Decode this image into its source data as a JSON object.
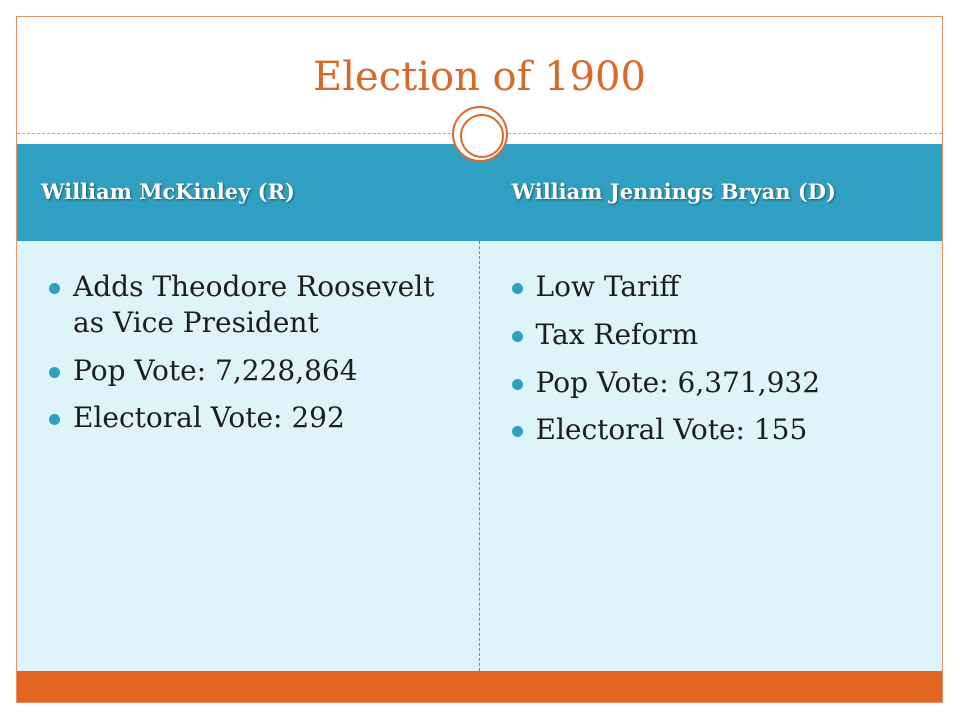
{
  "slide": {
    "title": "Election of 1900"
  },
  "table": {
    "headers": [
      "William McKinley (R)",
      "William Jennings Bryan (D)"
    ],
    "columns": [
      {
        "bullets": [
          "Adds Theodore Roosevelt as Vice President",
          "Pop Vote: 7,228,864",
          "Electoral Vote: 292"
        ]
      },
      {
        "bullets": [
          "Low Tariff",
          "Tax Reform",
          "Pop Vote: 6,371,932",
          "Electoral Vote: 155"
        ]
      }
    ]
  },
  "colors": {
    "accent_orange": "#e2661f",
    "header_blue": "#2fa0c1",
    "body_light_blue": "#def4fa"
  }
}
